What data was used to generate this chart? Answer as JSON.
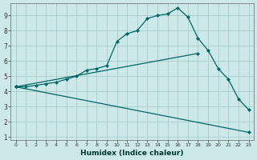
{
  "xlabel": "Humidex (Indice chaleur)",
  "bg_color": "#cce8e8",
  "grid_color": "#aacccc",
  "line_color": "#006666",
  "xlim": [
    -0.5,
    23.5
  ],
  "ylim": [
    0.8,
    9.8
  ],
  "xticks": [
    0,
    1,
    2,
    3,
    4,
    5,
    6,
    7,
    8,
    9,
    10,
    11,
    12,
    13,
    14,
    15,
    16,
    17,
    18,
    19,
    20,
    21,
    22,
    23
  ],
  "yticks": [
    1,
    2,
    3,
    4,
    5,
    6,
    7,
    8,
    9
  ],
  "line1_x": [
    0,
    1,
    2,
    3,
    4,
    5,
    6,
    7,
    8,
    9,
    10,
    11,
    12,
    13,
    14,
    15,
    16,
    17,
    18,
    19,
    20,
    21,
    22,
    23
  ],
  "line1_y": [
    4.3,
    4.3,
    4.4,
    4.5,
    4.6,
    4.8,
    5.0,
    5.4,
    5.5,
    5.7,
    7.3,
    7.8,
    8.0,
    8.8,
    9.0,
    9.1,
    9.5,
    8.9,
    7.5,
    6.7,
    5.5,
    4.8,
    3.5,
    2.8
  ],
  "line2_x": [
    0,
    18
  ],
  "line2_y": [
    4.3,
    6.5
  ],
  "line3_x": [
    0,
    23
  ],
  "line3_y": [
    4.3,
    1.3
  ]
}
